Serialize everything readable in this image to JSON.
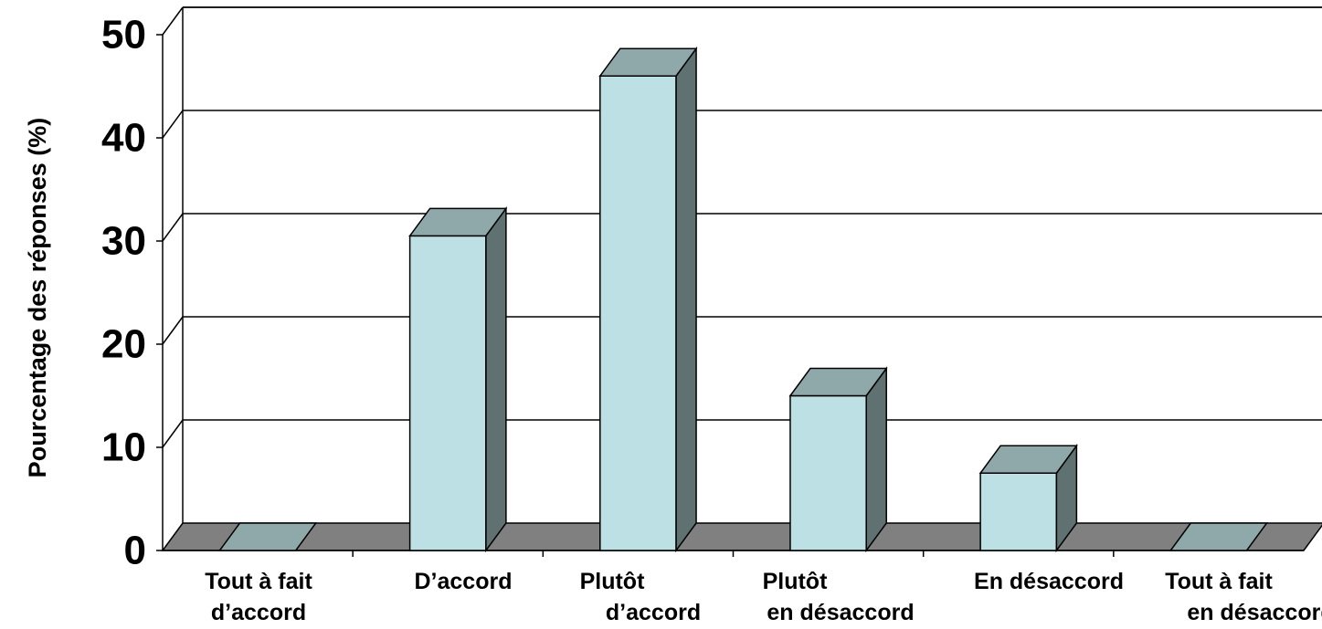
{
  "chart_data": {
    "type": "bar",
    "title": "",
    "xlabel": "",
    "ylabel": "Pourcentage des réponses (%)",
    "ylim": [
      0,
      50
    ],
    "yticks": [
      "0",
      "10",
      "20",
      "30",
      "40",
      "50"
    ],
    "grid": true,
    "style": "3d-column",
    "categories": [
      [
        "Tout à fait",
        "d’accord"
      ],
      [
        "D’accord"
      ],
      [
        "Plutôt",
        "d’accord"
      ],
      [
        "Plutôt",
        "en désaccord"
      ],
      [
        "En désaccord"
      ],
      [
        "Tout à fait",
        "en désaccord"
      ]
    ],
    "values": [
      0,
      30.5,
      46,
      15,
      7.5,
      0
    ]
  },
  "colors": {
    "bar_front": "#bde0e4",
    "bar_top": "#8fa9ab",
    "bar_side": "#5f7170",
    "floor": "#808080",
    "grid": "#000000"
  }
}
